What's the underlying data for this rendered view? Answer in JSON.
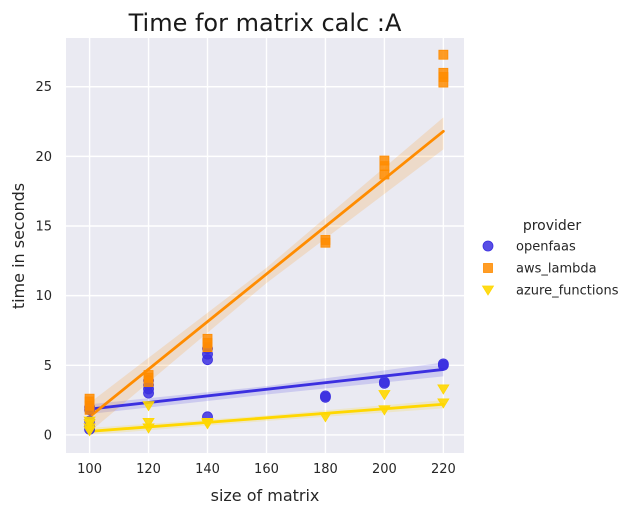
{
  "chart_data": {
    "type": "scatter",
    "title": "Time for matrix calc :A",
    "xlabel": "size of matrix",
    "ylabel": "time in seconds",
    "xlim": [
      92,
      227
    ],
    "ylim": [
      -1.3,
      28.5
    ],
    "xticks": [
      100,
      120,
      140,
      160,
      180,
      200,
      220
    ],
    "yticks": [
      0,
      5,
      10,
      15,
      20,
      25
    ],
    "grid": true,
    "legend": {
      "title": "provider",
      "placement": "right"
    },
    "series": [
      {
        "name": "openfaas",
        "color": "#3b2fe0",
        "marker": "circle",
        "points": [
          [
            100,
            0.4
          ],
          [
            100,
            0.6
          ],
          [
            100,
            1.0
          ],
          [
            100,
            1.8
          ],
          [
            100,
            2.0
          ],
          [
            120,
            3.0
          ],
          [
            120,
            3.3
          ],
          [
            120,
            3.6
          ],
          [
            120,
            3.9
          ],
          [
            140,
            1.3
          ],
          [
            140,
            5.4
          ],
          [
            140,
            5.8
          ],
          [
            140,
            6.2
          ],
          [
            180,
            2.7
          ],
          [
            180,
            2.8
          ],
          [
            200,
            3.7
          ],
          [
            200,
            3.8
          ],
          [
            220,
            5.0
          ],
          [
            220,
            5.1
          ]
        ],
        "regression": {
          "from": [
            100,
            1.85
          ],
          "to": [
            220,
            4.7
          ]
        },
        "ci_band": {
          "lower": [
            [
              100,
              1.5
            ],
            [
              160,
              2.9
            ],
            [
              220,
              4.2
            ]
          ],
          "upper": [
            [
              100,
              2.2
            ],
            [
              160,
              3.5
            ],
            [
              220,
              5.2
            ]
          ]
        }
      },
      {
        "name": "aws_lambda",
        "color": "#ff8c00",
        "marker": "square",
        "points": [
          [
            100,
            1.8
          ],
          [
            100,
            2.1
          ],
          [
            100,
            2.4
          ],
          [
            100,
            2.6
          ],
          [
            120,
            3.8
          ],
          [
            120,
            4.1
          ],
          [
            120,
            4.3
          ],
          [
            140,
            6.3
          ],
          [
            140,
            6.6
          ],
          [
            140,
            6.9
          ],
          [
            180,
            13.8
          ],
          [
            180,
            14.0
          ],
          [
            200,
            18.7
          ],
          [
            200,
            19.3
          ],
          [
            200,
            19.7
          ],
          [
            220,
            25.3
          ],
          [
            220,
            25.7
          ],
          [
            220,
            26.0
          ],
          [
            220,
            27.3
          ]
        ],
        "regression": {
          "from": [
            100,
            1.3
          ],
          "to": [
            220,
            21.8
          ]
        },
        "ci_band": {
          "lower": [
            [
              100,
              0.2
            ],
            [
              160,
              10.9
            ],
            [
              220,
              20.5
            ]
          ],
          "upper": [
            [
              100,
              2.3
            ],
            [
              160,
              12.0
            ],
            [
              220,
              22.8
            ]
          ]
        }
      },
      {
        "name": "azure_functions",
        "color": "#ffd700",
        "marker": "triangle-down",
        "points": [
          [
            100,
            0.3
          ],
          [
            100,
            0.5
          ],
          [
            100,
            0.8
          ],
          [
            100,
            1.0
          ],
          [
            120,
            0.5
          ],
          [
            120,
            0.9
          ],
          [
            120,
            2.1
          ],
          [
            140,
            0.8
          ],
          [
            140,
            0.9
          ],
          [
            180,
            1.3
          ],
          [
            200,
            1.8
          ],
          [
            200,
            2.9
          ],
          [
            220,
            2.3
          ],
          [
            220,
            3.3
          ]
        ],
        "regression": {
          "from": [
            100,
            0.25
          ],
          "to": [
            220,
            2.2
          ]
        },
        "ci_band": {
          "lower": [
            [
              100,
              0.0
            ],
            [
              160,
              1.0
            ],
            [
              220,
              1.9
            ]
          ],
          "upper": [
            [
              100,
              0.5
            ],
            [
              160,
              1.4
            ],
            [
              220,
              2.5
            ]
          ]
        }
      }
    ]
  }
}
